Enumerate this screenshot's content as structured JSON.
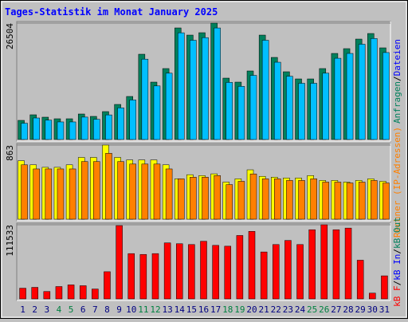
{
  "chart_data": [
    {
      "type": "bar",
      "title": "Tages-Statistik im Monat January 2025",
      "categories": [
        "1",
        "2",
        "3",
        "4",
        "5",
        "6",
        "7",
        "8",
        "9",
        "10",
        "11",
        "12",
        "13",
        "14",
        "15",
        "16",
        "17",
        "18",
        "19",
        "20",
        "21",
        "22",
        "23",
        "24",
        "25",
        "26",
        "27",
        "28",
        "29",
        "30",
        "31"
      ],
      "legend_separator": "/",
      "series": [
        {
          "name": "Anfragen",
          "color": "#00805c",
          "values": [
            4356,
            5627,
            5082,
            4719,
            4719,
            5808,
            5264,
            6353,
            7986,
            9801,
            19421,
            13068,
            16154,
            25410,
            23777,
            24321,
            26504,
            13976,
            13068,
            15609,
            23777,
            18695,
            15428,
            13794,
            13794,
            16154,
            19602,
            20691,
            22869,
            24140,
            20873
          ]
        },
        {
          "name": "Dateien",
          "color": "#00bfff",
          "values": [
            3700,
            4900,
            4400,
            4000,
            4000,
            5100,
            4600,
            5600,
            7200,
            9000,
            18300,
            12200,
            15100,
            24300,
            22600,
            23200,
            25400,
            13000,
            12100,
            14600,
            22600,
            17600,
            14400,
            12800,
            12800,
            15100,
            18500,
            19600,
            21700,
            23000,
            19800
          ]
        }
      ],
      "ylim": [
        0,
        26504
      ],
      "yticks": [
        26504
      ]
    },
    {
      "type": "bar",
      "categories": [
        "1",
        "2",
        "3",
        "4",
        "5",
        "6",
        "7",
        "8",
        "9",
        "10",
        "11",
        "12",
        "13",
        "14",
        "15",
        "16",
        "17",
        "18",
        "19",
        "20",
        "21",
        "22",
        "23",
        "24",
        "25",
        "26",
        "27",
        "28",
        "29",
        "30",
        "31"
      ],
      "series": [
        {
          "color": "#ffff00",
          "values": [
            681,
            633,
            604,
            604,
            633,
            719,
            719,
            863,
            719,
            690,
            690,
            690,
            633,
            470,
            518,
            508,
            528,
            432,
            470,
            575,
            499,
            489,
            480,
            480,
            508,
            451,
            451,
            432,
            451,
            470,
            441
          ]
        },
        {
          "name": "Rechner (IP-Adressen)",
          "color": "#ff8000",
          "values": [
            633,
            585,
            585,
            585,
            585,
            671,
            671,
            767,
            671,
            642,
            642,
            642,
            585,
            470,
            489,
            489,
            508,
            403,
            441,
            527,
            470,
            470,
            451,
            451,
            470,
            432,
            432,
            422,
            432,
            451,
            422
          ]
        }
      ],
      "ylim": [
        0,
        863
      ],
      "yticks": [
        863
      ]
    },
    {
      "type": "bar",
      "categories": [
        "1",
        "2",
        "3",
        "4",
        "5",
        "6",
        "7",
        "8",
        "9",
        "10",
        "11",
        "12",
        "13",
        "14",
        "15",
        "16",
        "17",
        "18",
        "19",
        "20",
        "21",
        "22",
        "23",
        "24",
        "25",
        "26",
        "27",
        "28",
        "29",
        "30",
        "31"
      ],
      "category_colors": [
        "#000080",
        "#000080",
        "#000080",
        "#008040",
        "#008040",
        "#000080",
        "#000080",
        "#000080",
        "#000080",
        "#000080",
        "#008040",
        "#008040",
        "#000080",
        "#000080",
        "#000080",
        "#000080",
        "#000080",
        "#008040",
        "#008040",
        "#000080",
        "#000080",
        "#000080",
        "#000080",
        "#000080",
        "#008040",
        "#008040",
        "#000080",
        "#000080",
        "#000080",
        "#000080",
        "#000080"
      ],
      "legend": [
        "kB F",
        "kB In",
        "kB Out"
      ],
      "legend_colors": [
        "#ff0000",
        "#0000ff",
        "#00805c"
      ],
      "legend_separator": "/",
      "series": [
        {
          "name": "kB F",
          "color": "#ff0000",
          "values": [
            16110,
            17350,
            11150,
            18590,
            21070,
            19830,
            14870,
            40890,
            110290,
            68150,
            66910,
            68150,
            84260,
            83020,
            81780,
            86730,
            80540,
            79300,
            95410,
            101600,
            70630,
            81780,
            87970,
            81780,
            104080,
            111533,
            104080,
            106560,
            58230,
            8670,
            34690
          ]
        }
      ],
      "ylim": [
        0,
        111533
      ],
      "yticks": [
        111533
      ]
    }
  ]
}
